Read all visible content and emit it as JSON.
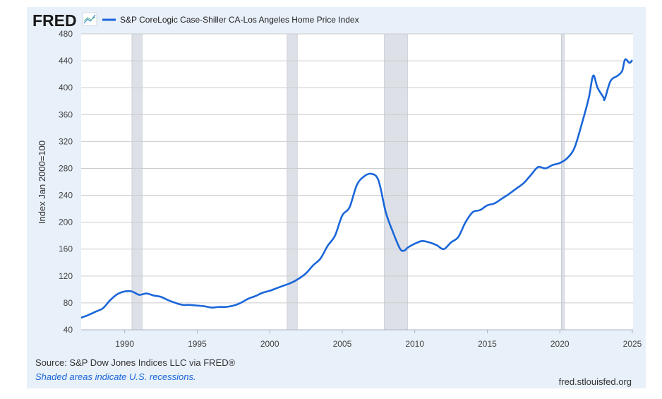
{
  "header": {
    "logo": "FRED",
    "logo_icon": "line-chart-icon"
  },
  "footer": {
    "source": "Source: S&P Dow Jones Indices LLC via FRED®",
    "recession_note": "Shaded areas indicate U.S. recessions.",
    "site": "fred.stlouisfed.org"
  },
  "colors": {
    "line": "#1a66d9",
    "panel": "#e8f0f9",
    "recession": "#dde1e7",
    "grid": "#cccccc"
  },
  "chart_data": {
    "type": "line",
    "title": "",
    "xlabel": "",
    "ylabel": "Index Jan 2000=100",
    "xlim": [
      1987,
      2025.05
    ],
    "ylim": [
      40,
      480
    ],
    "grid": true,
    "legend_placement": "top-left",
    "x_ticks": [
      "1990",
      "1995",
      "2000",
      "2005",
      "2010",
      "2015",
      "2020",
      "2025"
    ],
    "y_ticks": [
      "40",
      "80",
      "120",
      "160",
      "200",
      "240",
      "280",
      "320",
      "360",
      "400",
      "440",
      "480"
    ],
    "recessions": [
      [
        1990.5,
        1991.2
      ],
      [
        2001.2,
        2001.9
      ],
      [
        2007.9,
        2009.5
      ],
      [
        2020.1,
        2020.3
      ]
    ],
    "series": [
      {
        "name": "S&P CoreLogic Case-Shiller CA-Los Angeles Home Price Index",
        "x": [
          1987,
          1987.5,
          1988,
          1988.5,
          1989,
          1989.5,
          1990,
          1990.5,
          1991,
          1991.5,
          1992,
          1992.5,
          1993,
          1993.5,
          1994,
          1994.5,
          1995,
          1995.5,
          1996,
          1996.5,
          1997,
          1997.5,
          1998,
          1998.5,
          1999,
          1999.5,
          2000,
          2000.5,
          2001,
          2001.5,
          2002,
          2002.5,
          2003,
          2003.5,
          2004,
          2004.5,
          2005,
          2005.5,
          2006,
          2006.5,
          2007,
          2007.5,
          2008,
          2008.5,
          2009,
          2009.3,
          2009.5,
          2010,
          2010.5,
          2011,
          2011.5,
          2012,
          2012.5,
          2013,
          2013.5,
          2014,
          2014.5,
          2015,
          2015.5,
          2016,
          2016.5,
          2017,
          2017.5,
          2018,
          2018.5,
          2019,
          2019.5,
          2020,
          2020.5,
          2021,
          2021.5,
          2022,
          2022.3,
          2022.6,
          2023,
          2023.1,
          2023.5,
          2024,
          2024.3,
          2024.5,
          2024.8,
          2025
        ],
        "values": [
          58,
          62,
          67,
          72,
          84,
          93,
          97,
          97,
          92,
          94,
          91,
          89,
          84,
          80,
          77,
          77,
          76,
          75,
          73,
          74,
          74,
          76,
          80,
          86,
          90,
          95,
          98,
          102,
          106,
          110,
          116,
          124,
          136,
          146,
          165,
          180,
          210,
          222,
          255,
          268,
          272,
          262,
          215,
          185,
          160,
          158,
          162,
          168,
          172,
          170,
          166,
          160,
          170,
          178,
          200,
          215,
          218,
          225,
          228,
          235,
          242,
          250,
          258,
          270,
          282,
          280,
          285,
          288,
          295,
          310,
          345,
          385,
          418,
          400,
          386,
          383,
          410,
          418,
          425,
          442,
          437,
          441
        ]
      }
    ]
  }
}
